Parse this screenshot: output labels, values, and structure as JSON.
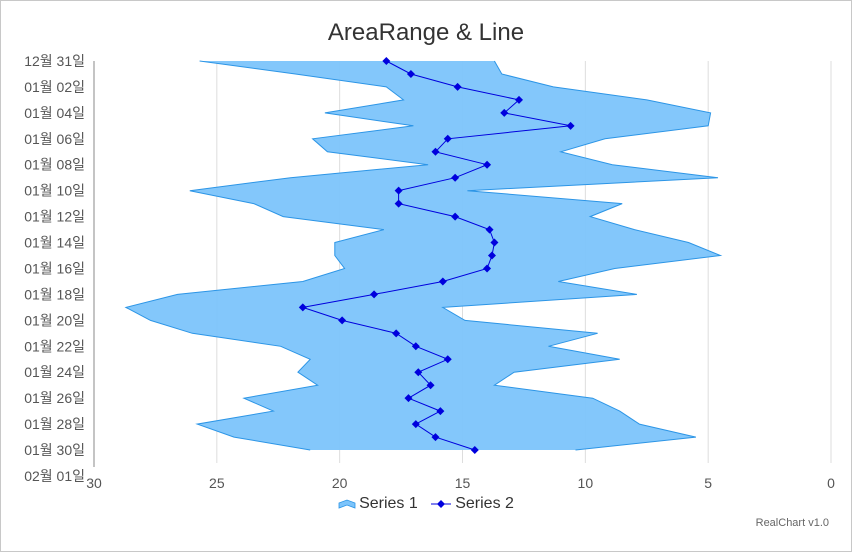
{
  "chart_data": {
    "type": "area",
    "title": "AreaRange & Line",
    "orientation": "inverted",
    "colors": {
      "range_fill": "#7cc4fb",
      "range_stroke": "#2c95e6",
      "line": "#0000dd",
      "grid": "#dddddd",
      "axis": "#888888"
    },
    "value_axis": {
      "min": 0,
      "max": 30,
      "reversed": true,
      "ticks": [
        30,
        25,
        20,
        15,
        10,
        5,
        0
      ],
      "grid": true
    },
    "category_axis": {
      "tick_labels": [
        "12월 31일",
        "01월 02일",
        "01월 04일",
        "01월 06일",
        "01월 08일",
        "01월 10일",
        "01월 12일",
        "01월 14일",
        "01월 16일",
        "01월 18일",
        "01월 20일",
        "01월 22일",
        "01월 24일",
        "01월 26일",
        "01월 28일",
        "01월 30일",
        "02월 01일"
      ]
    },
    "categories": [
      "12월 31일",
      "01월 01일",
      "01월 02일",
      "01월 03일",
      "01월 04일",
      "01월 05일",
      "01월 06일",
      "01월 07일",
      "01월 08일",
      "01월 09일",
      "01월 10일",
      "01월 11일",
      "01월 12일",
      "01월 13일",
      "01월 14일",
      "01월 15일",
      "01월 16일",
      "01월 17일",
      "01월 18일",
      "01월 19일",
      "01월 20일",
      "01월 21일",
      "01월 22일",
      "01월 23일",
      "01월 24일",
      "01월 25일",
      "01월 26일",
      "01월 27일",
      "01월 28일",
      "01월 29일",
      "01월 30일",
      "01월 31일"
    ],
    "series": [
      {
        "name": "Series 1",
        "type": "arearange",
        "low": [
          13.7,
          13.4,
          11.3,
          7.5,
          4.9,
          5.0,
          9.2,
          11.0,
          8.9,
          4.6,
          14.8,
          8.5,
          9.8,
          8.0,
          5.8,
          4.5,
          8.8,
          11.1,
          7.9,
          15.8,
          14.9,
          9.5,
          11.5,
          8.6,
          12.9,
          13.7,
          9.7,
          8.6,
          7.8,
          5.5,
          10.4,
          null
        ],
        "high": [
          25.7,
          21.8,
          18.1,
          17.4,
          20.6,
          17.0,
          21.1,
          20.5,
          16.4,
          22.0,
          26.1,
          23.5,
          22.3,
          18.2,
          20.2,
          20.2,
          19.8,
          21.5,
          26.6,
          28.7,
          27.7,
          26.0,
          22.4,
          21.2,
          21.7,
          20.9,
          23.9,
          22.7,
          25.8,
          24.3,
          21.2,
          null
        ]
      },
      {
        "name": "Series 2",
        "type": "line",
        "values": [
          18.1,
          17.1,
          15.2,
          12.7,
          13.3,
          10.6,
          15.6,
          16.1,
          14.0,
          15.3,
          17.6,
          17.6,
          15.3,
          13.9,
          13.7,
          13.8,
          14.0,
          15.8,
          18.6,
          21.5,
          19.9,
          17.7,
          16.9,
          15.6,
          16.8,
          16.3,
          17.2,
          15.9,
          16.9,
          16.1,
          14.5,
          null
        ]
      }
    ],
    "legend": {
      "position": "bottom-center"
    }
  },
  "credit": "RealChart v1.0"
}
